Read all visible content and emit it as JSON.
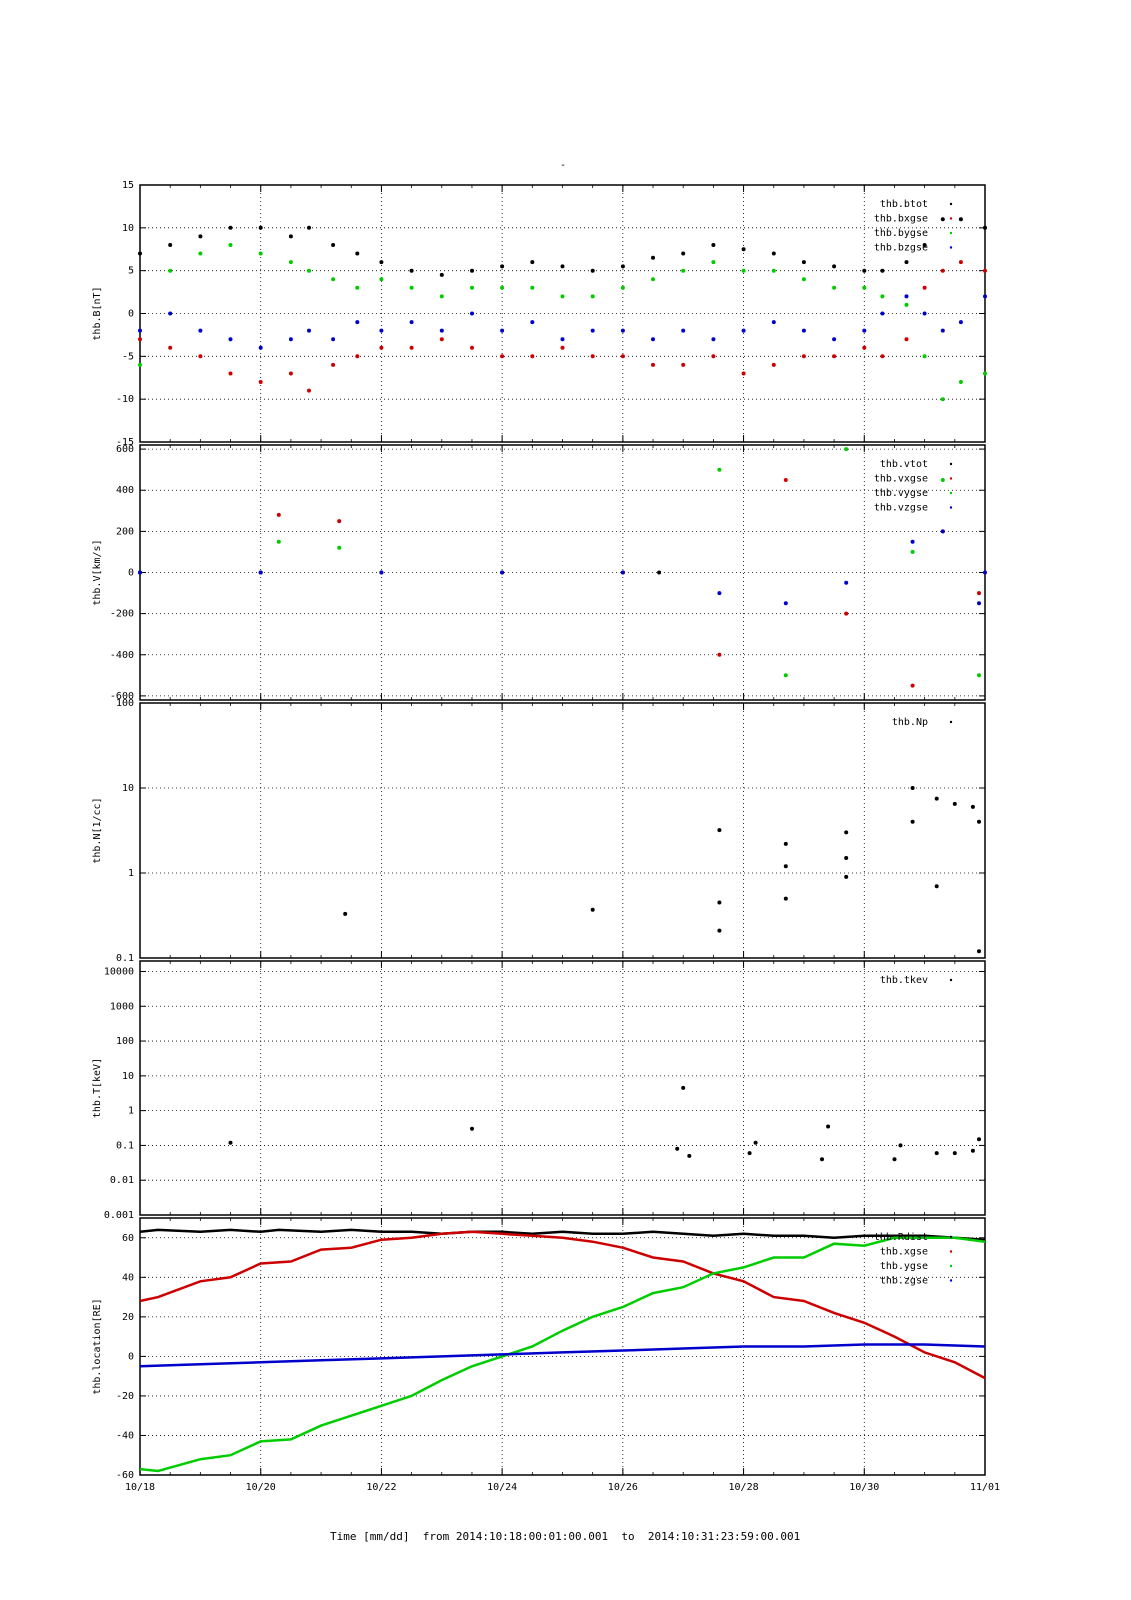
{
  "title": "-",
  "x_axis_title": "Time [mm/dd]  from 2014:10:18:00:01:00.001  to  2014:10:31:23:59:00.001",
  "colors": {
    "black": "#000000",
    "red": "#cc0000",
    "green": "#00cc00",
    "blue": "#0000cc"
  },
  "chart_data": [
    {
      "type": "scatter",
      "ylabel": "thb.B[nT]",
      "ylim": [
        -15,
        15
      ],
      "yticks": [
        -15,
        -10,
        -5,
        0,
        5,
        10,
        15
      ],
      "xlim": [
        18,
        32
      ],
      "xticks": [
        "10/18",
        "10/20",
        "10/22",
        "10/24",
        "10/26",
        "10/28",
        "10/30",
        "11/01"
      ],
      "grid": true,
      "legend": "top-right",
      "series": [
        {
          "name": "thb.btot",
          "color": "#000000",
          "x": [
            18,
            18.5,
            19,
            19.5,
            20,
            20.5,
            20.8,
            21.2,
            21.6,
            22,
            22.5,
            23,
            23.5,
            24,
            24.5,
            25,
            25.5,
            26,
            26.5,
            27,
            27.5,
            28,
            28.5,
            29,
            29.5,
            30,
            30.3,
            30.7,
            31,
            31.3,
            31.6,
            32
          ],
          "y": [
            7,
            8,
            9,
            10,
            10,
            9,
            10,
            8,
            7,
            6,
            5,
            4.5,
            5,
            5.5,
            6,
            5.5,
            5,
            5.5,
            6.5,
            7,
            8,
            7.5,
            7,
            6,
            5.5,
            5,
            5,
            6,
            8,
            11,
            11,
            10
          ]
        },
        {
          "name": "thb.bxgse",
          "color": "#cc0000",
          "x": [
            18,
            18.5,
            19,
            19.5,
            20,
            20.5,
            20.8,
            21.2,
            21.6,
            22,
            22.5,
            23,
            23.5,
            24,
            24.5,
            25,
            25.5,
            26,
            26.5,
            27,
            27.5,
            28,
            28.5,
            29,
            29.5,
            30,
            30.3,
            30.7,
            31,
            31.3,
            31.6,
            32
          ],
          "y": [
            -3,
            -4,
            -5,
            -7,
            -8,
            -7,
            -9,
            -6,
            -5,
            -4,
            -4,
            -3,
            -4,
            -5,
            -5,
            -4,
            -5,
            -5,
            -6,
            -6,
            -5,
            -7,
            -6,
            -5,
            -5,
            -4,
            -5,
            -3,
            3,
            5,
            6,
            5
          ]
        },
        {
          "name": "thb.bygse",
          "color": "#00cc00",
          "x": [
            18,
            18.5,
            19,
            19.5,
            20,
            20.5,
            20.8,
            21.2,
            21.6,
            22,
            22.5,
            23,
            23.5,
            24,
            24.5,
            25,
            25.5,
            26,
            26.5,
            27,
            27.5,
            28,
            28.5,
            29,
            29.5,
            30,
            30.3,
            30.7,
            31,
            31.3,
            31.6,
            32
          ],
          "y": [
            -6,
            5,
            7,
            8,
            7,
            6,
            5,
            4,
            3,
            4,
            3,
            2,
            3,
            3,
            3,
            2,
            2,
            3,
            4,
            5,
            6,
            5,
            5,
            4,
            3,
            3,
            2,
            1,
            -5,
            -10,
            -8,
            -7
          ]
        },
        {
          "name": "thb.bzgse",
          "color": "#0000cc",
          "x": [
            18,
            18.5,
            19,
            19.5,
            20,
            20.5,
            20.8,
            21.2,
            21.6,
            22,
            22.5,
            23,
            23.5,
            24,
            24.5,
            25,
            25.5,
            26,
            26.5,
            27,
            27.5,
            28,
            28.5,
            29,
            29.5,
            30,
            30.3,
            30.7,
            31,
            31.3,
            31.6,
            32
          ],
          "y": [
            -2,
            0,
            -2,
            -3,
            -4,
            -3,
            -2,
            -3,
            -1,
            -2,
            -1,
            -2,
            0,
            -2,
            -1,
            -3,
            -2,
            -2,
            -3,
            -2,
            -3,
            -2,
            -1,
            -2,
            -3,
            -2,
            0,
            2,
            0,
            -2,
            -1,
            2
          ]
        }
      ]
    },
    {
      "type": "scatter",
      "ylabel": "thb.V[km/s]",
      "ylim": [
        -620,
        620
      ],
      "yticks": [
        -600,
        -400,
        -200,
        0,
        200,
        400,
        600
      ],
      "xlim": [
        18,
        32
      ],
      "xticks": [
        "10/18",
        "10/20",
        "10/22",
        "10/24",
        "10/26",
        "10/28",
        "10/30",
        "11/01"
      ],
      "grid": true,
      "legend": "top-right",
      "series": [
        {
          "name": "thb.vtot",
          "color": "#000000",
          "x": [
            18,
            20,
            22,
            24,
            26,
            26.6
          ],
          "y": [
            0,
            0,
            0,
            0,
            0,
            0
          ]
        },
        {
          "name": "thb.vxgse",
          "color": "#cc0000",
          "x": [
            20.3,
            21.3,
            27.6,
            28.7,
            29.7,
            30.8,
            31.3,
            31.9
          ],
          "y": [
            280,
            250,
            -400,
            450,
            -200,
            -550,
            200,
            -100
          ]
        },
        {
          "name": "thb.vygse",
          "color": "#00cc00",
          "x": [
            20.3,
            21.3,
            27.6,
            28.7,
            29.7,
            30.8,
            31.3,
            31.9
          ],
          "y": [
            150,
            120,
            500,
            -500,
            600,
            100,
            450,
            -500
          ]
        },
        {
          "name": "thb.vzgse",
          "color": "#0000cc",
          "x": [
            18,
            20,
            22,
            24,
            26,
            27.6,
            28.7,
            29.7,
            30.8,
            31.3,
            31.9,
            32
          ],
          "y": [
            0,
            0,
            0,
            0,
            0,
            -100,
            -150,
            -50,
            150,
            200,
            -150,
            0
          ]
        }
      ]
    },
    {
      "type": "scatter",
      "ylabel": "thb.N[1/cc]",
      "ylim": [
        0.1,
        100
      ],
      "yscale": "log",
      "ytick_labels": [
        "0.1",
        "1",
        "10",
        "100"
      ],
      "xlim": [
        18,
        32
      ],
      "xticks": [
        "10/18",
        "10/20",
        "10/22",
        "10/24",
        "10/26",
        "10/28",
        "10/30",
        "11/01"
      ],
      "grid": true,
      "legend": "top-right",
      "series": [
        {
          "name": "thb.Np",
          "color": "#000000",
          "x": [
            21.4,
            25.5,
            27.6,
            27.6,
            27.6,
            28.7,
            28.7,
            28.7,
            29.7,
            29.7,
            29.7,
            30.8,
            30.8,
            31.2,
            31.2,
            31.5,
            31.8,
            31.9,
            31.9
          ],
          "y": [
            0.33,
            0.37,
            3.2,
            0.45,
            0.21,
            2.2,
            1.2,
            0.5,
            3.0,
            1.5,
            0.9,
            10,
            4,
            7.5,
            0.7,
            6.5,
            6,
            4,
            0.12
          ]
        }
      ]
    },
    {
      "type": "scatter",
      "ylabel": "thb.T[keV]",
      "ylim": [
        0.001,
        20000
      ],
      "yscale": "log",
      "ytick_labels": [
        "0.001",
        "0.01",
        "0.1",
        "1",
        "10",
        "100",
        "1000",
        "10000"
      ],
      "xlim": [
        18,
        32
      ],
      "xticks": [
        "10/18",
        "10/20",
        "10/22",
        "10/24",
        "10/26",
        "10/28",
        "10/30",
        "11/01"
      ],
      "grid": true,
      "legend": "top-right",
      "series": [
        {
          "name": "thb.tkev",
          "color": "#000000",
          "x": [
            19.5,
            23.5,
            26.9,
            27.0,
            27.1,
            28.1,
            28.2,
            29.3,
            29.4,
            30.5,
            30.6,
            31.2,
            31.5,
            31.8,
            31.9
          ],
          "y": [
            0.12,
            0.3,
            0.08,
            4.5,
            0.05,
            0.06,
            0.12,
            0.04,
            0.35,
            0.04,
            0.1,
            0.06,
            0.06,
            0.07,
            0.15
          ]
        }
      ]
    },
    {
      "type": "line",
      "ylabel": "thb.location[RE]",
      "ylim": [
        -60,
        70
      ],
      "yticks": [
        -60,
        -40,
        -20,
        0,
        20,
        40,
        60
      ],
      "xlim": [
        18,
        32
      ],
      "xticks": [
        "10/18",
        "10/20",
        "10/22",
        "10/24",
        "10/26",
        "10/28",
        "10/30",
        "11/01"
      ],
      "grid": true,
      "legend": "top-right",
      "series": [
        {
          "name": "thb.Rdist",
          "color": "#000000",
          "x": [
            18,
            18.3,
            19,
            19.5,
            20,
            20.3,
            21,
            21.5,
            22,
            22.5,
            23,
            23.5,
            24,
            24.5,
            25,
            25.5,
            26,
            26.5,
            27,
            27.5,
            28,
            28.5,
            29,
            29.5,
            30,
            30.5,
            31,
            31.5,
            32
          ],
          "y": [
            63,
            64,
            63,
            64,
            63,
            64,
            63,
            64,
            63,
            63,
            62,
            63,
            63,
            62,
            63,
            62,
            62,
            63,
            62,
            61,
            62,
            61,
            61,
            60,
            61,
            61,
            61,
            60,
            59
          ]
        },
        {
          "name": "thb.xgse",
          "color": "#cc0000",
          "x": [
            18,
            18.3,
            19,
            19.5,
            20,
            20.5,
            21,
            21.5,
            22,
            22.5,
            23,
            23.5,
            24,
            24.5,
            25,
            25.5,
            26,
            26.5,
            27,
            27.5,
            28,
            28.5,
            29,
            29.5,
            30,
            30.5,
            31,
            31.5,
            32
          ],
          "y": [
            28,
            30,
            38,
            40,
            47,
            48,
            54,
            55,
            59,
            60,
            62,
            63,
            62,
            61,
            60,
            58,
            55,
            50,
            48,
            42,
            38,
            30,
            28,
            22,
            17,
            10,
            2,
            -3,
            -11
          ]
        },
        {
          "name": "thb.ygse",
          "color": "#00cc00",
          "x": [
            18,
            18.3,
            19,
            19.5,
            20,
            20.5,
            21,
            21.5,
            22,
            22.5,
            23,
            23.5,
            24,
            24.5,
            25,
            25.5,
            26,
            26.5,
            27,
            27.5,
            28,
            28.5,
            29,
            29.5,
            30,
            30.5,
            31,
            31.5,
            32
          ],
          "y": [
            -57,
            -58,
            -52,
            -50,
            -43,
            -42,
            -35,
            -30,
            -25,
            -20,
            -12,
            -5,
            0,
            5,
            13,
            20,
            25,
            32,
            35,
            42,
            45,
            50,
            50,
            57,
            56,
            60,
            60,
            60,
            58
          ]
        },
        {
          "name": "thb.zgse",
          "color": "#0000cc",
          "x": [
            18,
            19,
            20,
            21,
            22,
            23,
            24,
            25,
            26,
            27,
            28,
            29,
            30,
            31,
            32
          ],
          "y": [
            -5,
            -4,
            -3,
            -2,
            -1,
            0,
            1,
            2,
            3,
            4,
            5,
            5,
            6,
            6,
            5
          ]
        }
      ]
    }
  ]
}
